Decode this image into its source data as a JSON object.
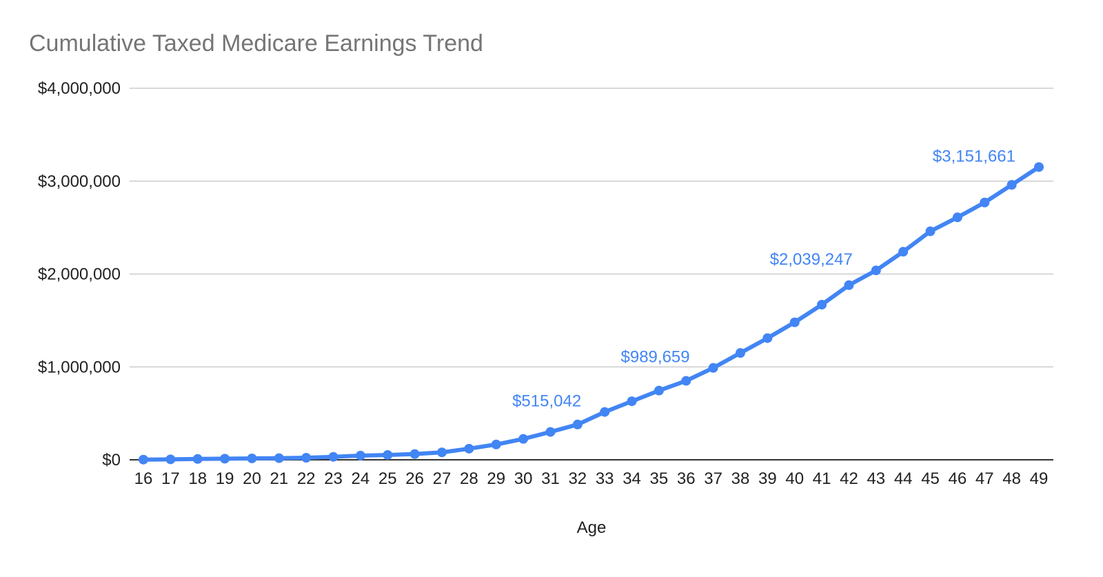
{
  "chart_data": {
    "type": "line",
    "title": "Cumulative Taxed Medicare Earnings Trend",
    "xlabel": "Age",
    "ylabel": "",
    "ylim": [
      0,
      4000000
    ],
    "yticks": [
      {
        "value": 0,
        "label": "$0"
      },
      {
        "value": 1000000,
        "label": "$1,000,000"
      },
      {
        "value": 2000000,
        "label": "$2,000,000"
      },
      {
        "value": 3000000,
        "label": "$3,000,000"
      },
      {
        "value": 4000000,
        "label": "$4,000,000"
      }
    ],
    "grid": true,
    "legend": "none",
    "color": "#4285f4",
    "x": [
      16,
      17,
      18,
      19,
      20,
      21,
      22,
      23,
      24,
      25,
      26,
      27,
      28,
      29,
      30,
      31,
      32,
      33,
      34,
      35,
      36,
      37,
      38,
      39,
      40,
      41,
      42,
      43,
      44,
      45,
      46,
      47,
      48,
      49
    ],
    "series": [
      {
        "values": [
          2000,
          5000,
          9000,
          12000,
          15000,
          18000,
          22000,
          32000,
          45000,
          52000,
          62000,
          80000,
          120000,
          165000,
          225000,
          300000,
          380000,
          515042,
          630000,
          745000,
          850000,
          989659,
          1150000,
          1310000,
          1480000,
          1670000,
          1880000,
          2039247,
          2240000,
          2460000,
          2610000,
          2770000,
          2960000,
          3151661
        ]
      }
    ],
    "annotations": [
      {
        "x": 33,
        "value": 515042,
        "label": "$515,042"
      },
      {
        "x": 37,
        "value": 989659,
        "label": "$989,659"
      },
      {
        "x": 43,
        "value": 2039247,
        "label": "$2,039,247"
      },
      {
        "x": 49,
        "value": 3151661,
        "label": "$3,151,661"
      }
    ]
  }
}
